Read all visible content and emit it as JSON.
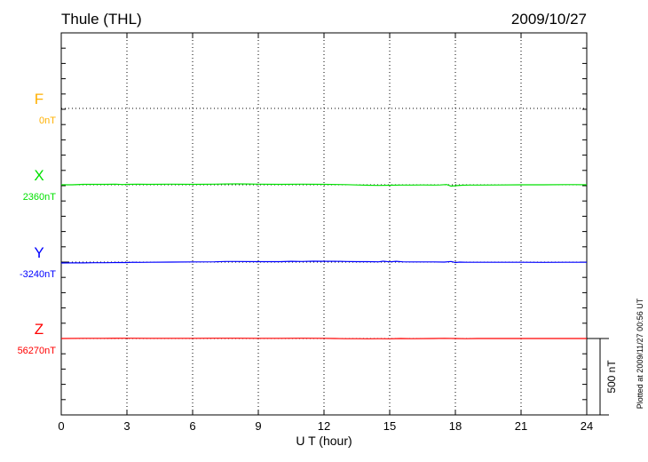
{
  "chart_data": {
    "type": "line",
    "title": "Thule (THL)",
    "date": "2009/10/27",
    "xlabel": "U T (hour)",
    "xlim": [
      0,
      24
    ],
    "xticks": [
      0,
      3,
      6,
      9,
      12,
      15,
      18,
      21,
      24
    ],
    "grid": true,
    "scale_bar_label": "500 nT",
    "plotted_note": "Plotted at 2009/11/27 00:56 UT",
    "series": [
      {
        "name": "F",
        "baseline_label": "0nT",
        "color": "#ffb000",
        "x": [],
        "values": []
      },
      {
        "name": "X",
        "baseline_label": "2360nT",
        "color": "#00e000",
        "x": [
          0,
          0.5,
          1,
          1.5,
          2,
          2.5,
          2.8,
          3,
          3.5,
          4,
          5,
          6,
          7,
          7.5,
          8,
          8.5,
          9,
          10,
          11,
          12,
          13,
          13.5,
          14,
          14.5,
          15,
          15.5,
          16,
          16.5,
          17,
          17.3,
          17.6,
          17.8,
          18,
          18.3,
          18.6,
          19,
          20,
          21,
          22,
          23,
          23.5,
          24
        ],
        "values": [
          0,
          0,
          3,
          3,
          3,
          4,
          2,
          3,
          4,
          3,
          4,
          3,
          4,
          5,
          6,
          5,
          4,
          3,
          4,
          3,
          1,
          -1,
          -3,
          -4,
          -3,
          -2,
          -2,
          -1,
          -2,
          -1,
          2,
          -9,
          -6,
          -3,
          -2,
          -2,
          -1,
          0,
          0,
          1,
          1,
          0
        ]
      },
      {
        "name": "Y",
        "baseline_label": "-3240nT",
        "color": "#0000ff",
        "x": [
          0,
          0.5,
          1,
          1.5,
          2,
          2.5,
          3,
          3.3,
          3.6,
          4,
          5,
          6,
          7,
          7.5,
          8,
          9,
          10,
          10.5,
          11,
          11.5,
          12,
          12.5,
          13,
          13.5,
          14,
          14.5,
          14.7,
          15,
          15.3,
          15.6,
          16,
          17,
          17.5,
          17.8,
          18,
          18.2,
          18.5,
          19,
          20,
          21,
          22,
          23,
          24
        ],
        "values": [
          -6,
          -5,
          -5,
          -4,
          -4,
          -3,
          -3,
          -1,
          -2,
          -1,
          0,
          1,
          2,
          4,
          4,
          3,
          3,
          5,
          4,
          6,
          5,
          5,
          4,
          3,
          3,
          2,
          6,
          2,
          5,
          2,
          1,
          1,
          0,
          4,
          -3,
          0,
          -1,
          -1,
          -1,
          -1,
          -2,
          -1,
          -1
        ]
      },
      {
        "name": "Z",
        "baseline_label": "56270nT",
        "color": "#ff0000",
        "x": [
          0,
          1,
          2,
          3,
          4,
          5,
          6,
          7,
          8,
          9,
          10,
          11,
          12,
          12.5,
          13,
          13.5,
          14,
          14.5,
          15,
          15.5,
          16,
          17,
          17.5,
          18,
          18.5,
          19,
          20,
          21,
          22,
          23,
          24
        ],
        "values": [
          0,
          1,
          1,
          2,
          1,
          1,
          1,
          2,
          2,
          1,
          1,
          2,
          1,
          0,
          -1,
          -1,
          -2,
          -1,
          -2,
          0,
          -1,
          0,
          1,
          0,
          -1,
          0,
          0,
          0,
          0,
          0,
          0
        ]
      }
    ]
  }
}
